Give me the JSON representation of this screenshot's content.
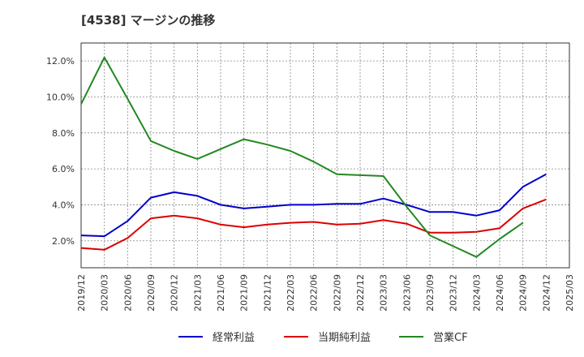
{
  "chart_data": {
    "type": "line",
    "title": "[4538]  マージンの推移",
    "x": [
      "2019/12",
      "2020/03",
      "2020/06",
      "2020/09",
      "2020/12",
      "2021/03",
      "2021/06",
      "2021/09",
      "2021/12",
      "2022/03",
      "2022/06",
      "2022/09",
      "2022/12",
      "2023/03",
      "2023/06",
      "2023/09",
      "2023/12",
      "2024/03",
      "2024/06",
      "2024/09",
      "2024/12",
      "2025/03"
    ],
    "ylim": [
      0.5,
      13.0
    ],
    "yticks": [
      2.0,
      4.0,
      6.0,
      8.0,
      10.0,
      12.0
    ],
    "ytick_labels": [
      "2.0%",
      "4.0%",
      "6.0%",
      "8.0%",
      "10.0%",
      "12.0%"
    ],
    "grid": true,
    "legend_position": "bottom",
    "series": [
      {
        "name": "経常利益",
        "color": "#0000cc",
        "values": [
          2.3,
          2.25,
          3.1,
          4.4,
          4.7,
          4.5,
          4.0,
          3.8,
          3.9,
          4.0,
          4.0,
          4.05,
          4.05,
          4.35,
          4.0,
          3.6,
          3.6,
          3.4,
          3.7,
          5.0,
          5.7,
          null
        ]
      },
      {
        "name": "当期純利益",
        "color": "#dd0000",
        "values": [
          1.6,
          1.5,
          2.15,
          3.25,
          3.4,
          3.25,
          2.9,
          2.75,
          2.9,
          3.0,
          3.05,
          2.9,
          2.95,
          3.15,
          2.95,
          2.45,
          2.45,
          2.5,
          2.7,
          3.8,
          4.3,
          null
        ]
      },
      {
        "name": "営業CF",
        "color": "#228822",
        "values": [
          9.6,
          12.2,
          9.9,
          7.55,
          7.0,
          6.55,
          7.1,
          7.65,
          7.35,
          7.0,
          6.4,
          5.7,
          5.65,
          5.6,
          3.9,
          2.3,
          1.7,
          1.1,
          2.1,
          3.0,
          null,
          null
        ]
      }
    ]
  }
}
